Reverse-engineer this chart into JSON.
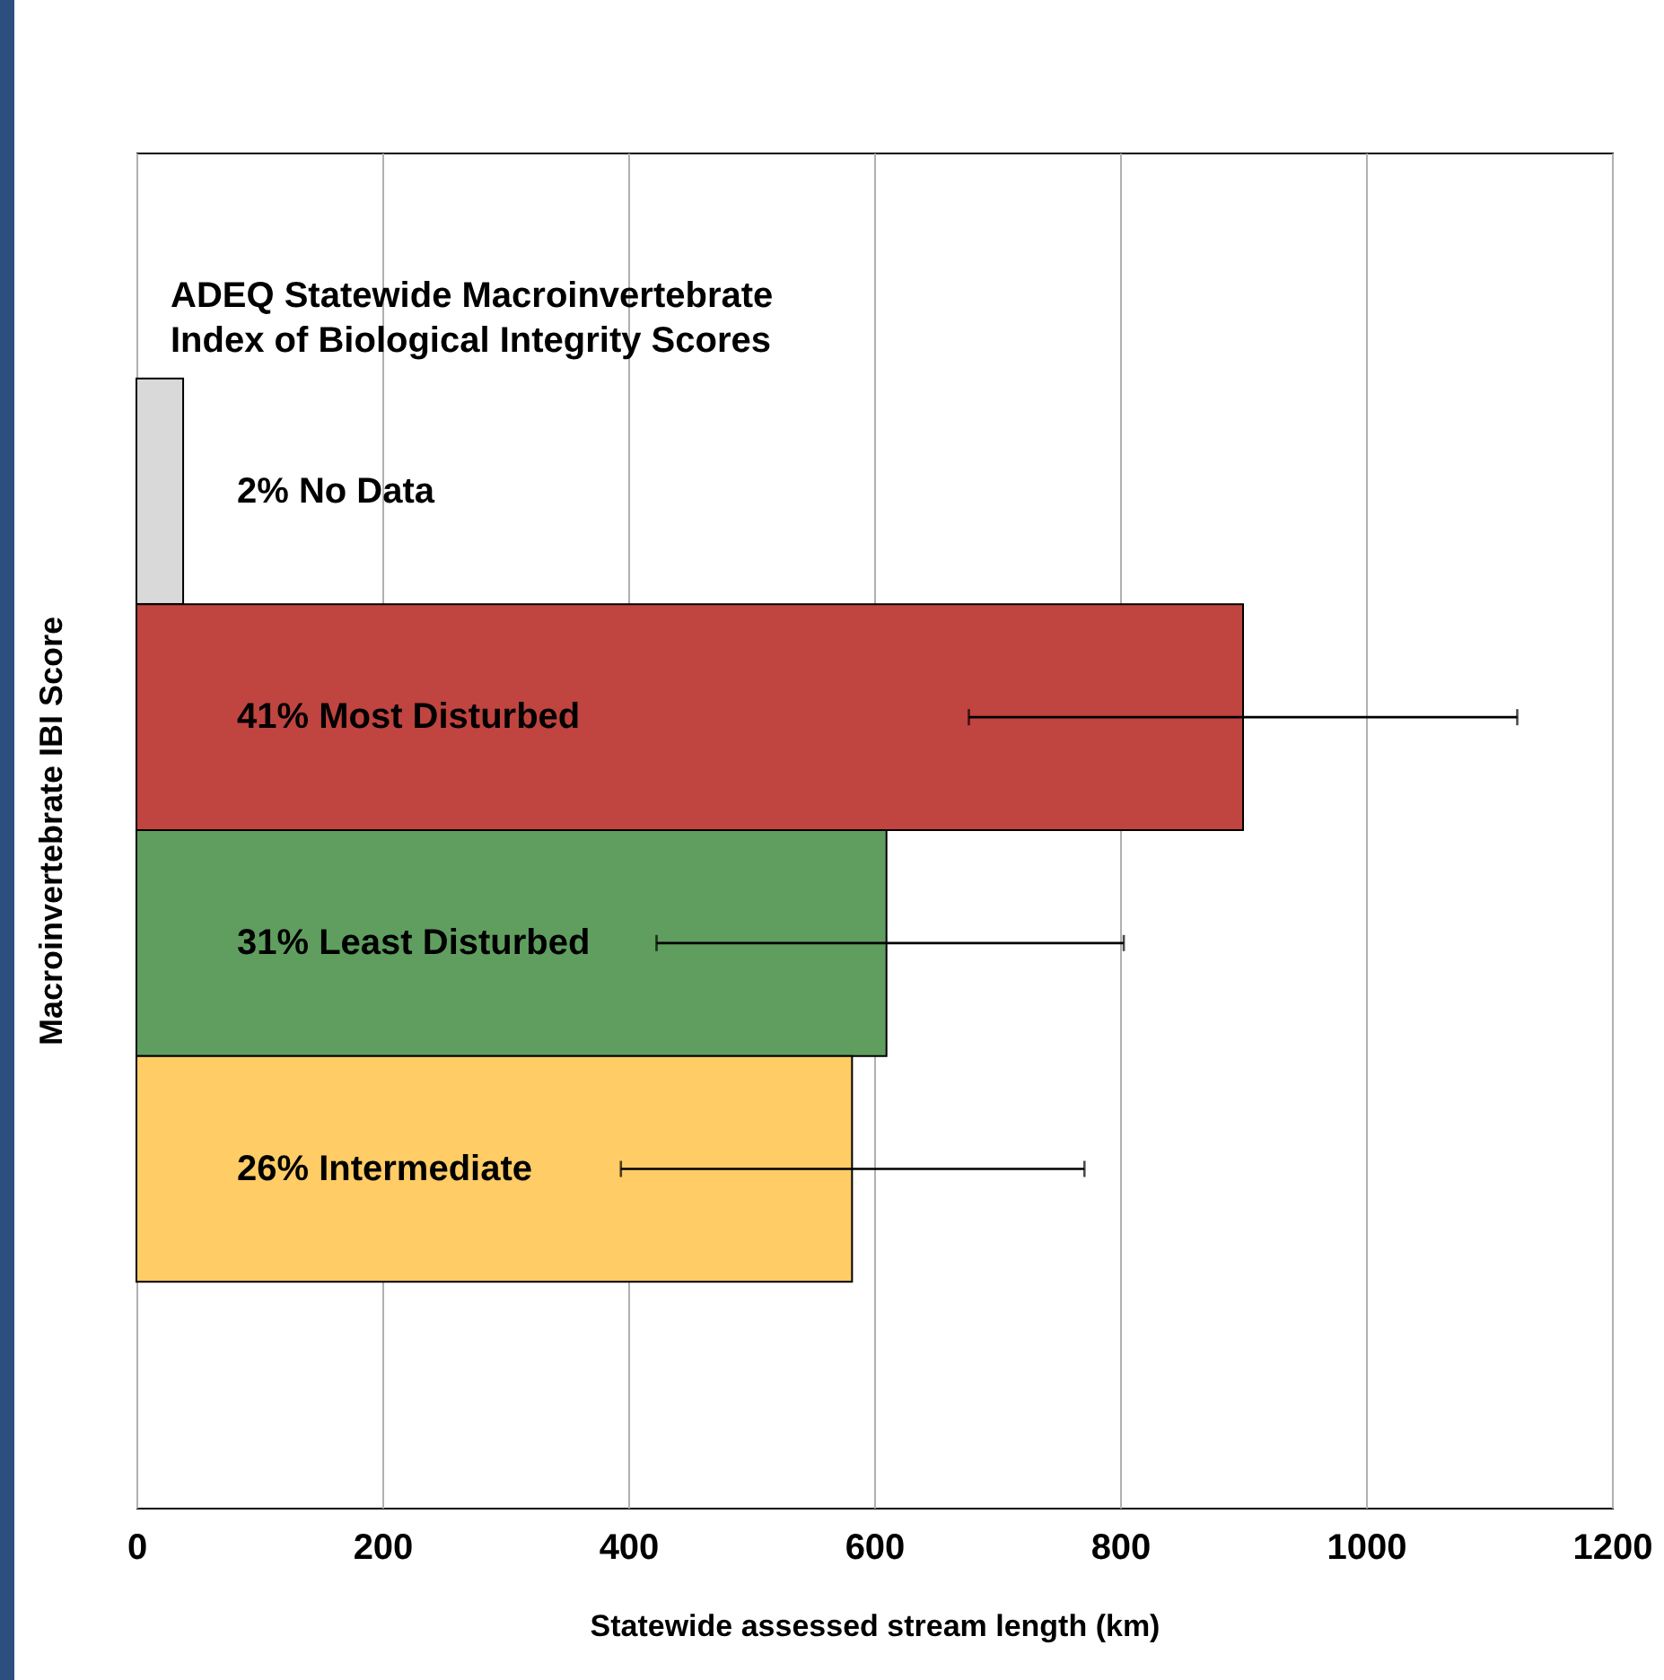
{
  "chart_data": {
    "type": "bar",
    "orientation": "horizontal",
    "title": "ADEQ Statewide Macroinvertebrate\nIndex of Biological Integrity Scores",
    "xlabel": "Statewide assessed stream length (km)",
    "ylabel": "Macroinvertebrate IBI Score",
    "categories": [
      "2% No Data",
      "41% Most Disturbed",
      "31% Least Disturbed",
      "26% Intermediate"
    ],
    "values": [
      38,
      900,
      610,
      582
    ],
    "colors": [
      "#d9d9d9",
      "#c0443f",
      "#5f9e5f",
      "#ffcc66"
    ],
    "errors": [
      null,
      [
        677,
        1123
      ],
      [
        423,
        803
      ],
      [
        394,
        771
      ]
    ],
    "xlim": [
      0,
      1200
    ],
    "xticks": [
      0,
      200,
      400,
      600,
      800,
      1000,
      1200
    ],
    "grid": "x",
    "tick_labels": "x",
    "legend": false
  }
}
